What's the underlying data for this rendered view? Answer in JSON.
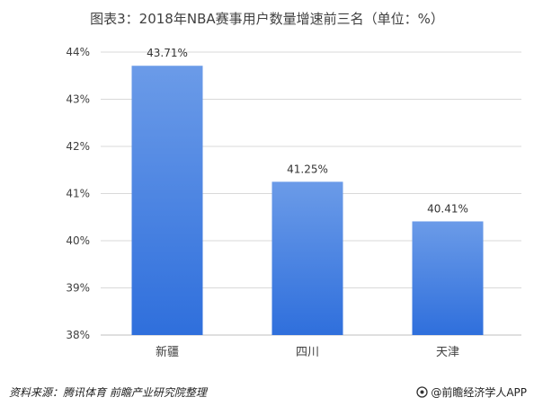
{
  "chart_data": {
    "type": "bar",
    "title": "图表3：2018年NBA赛事用户数量增速前三名（单位：%）",
    "categories": [
      "新疆",
      "四川",
      "天津"
    ],
    "values": [
      43.71,
      41.25,
      40.41
    ],
    "data_labels": [
      "43.71%",
      "41.25%",
      "40.41%"
    ],
    "ylim": [
      38,
      44
    ],
    "yticks": [
      "38%",
      "39%",
      "40%",
      "41%",
      "42%",
      "43%",
      "44%"
    ],
    "grid": true,
    "bar_color_top": "#6b9be8",
    "bar_color_bottom": "#2f6fdc",
    "xlabel": "",
    "ylabel": ""
  },
  "footer": {
    "source": "资料来源：腾讯体育 前瞻产业研究院整理",
    "brand": "@前瞻经济学人APP"
  }
}
